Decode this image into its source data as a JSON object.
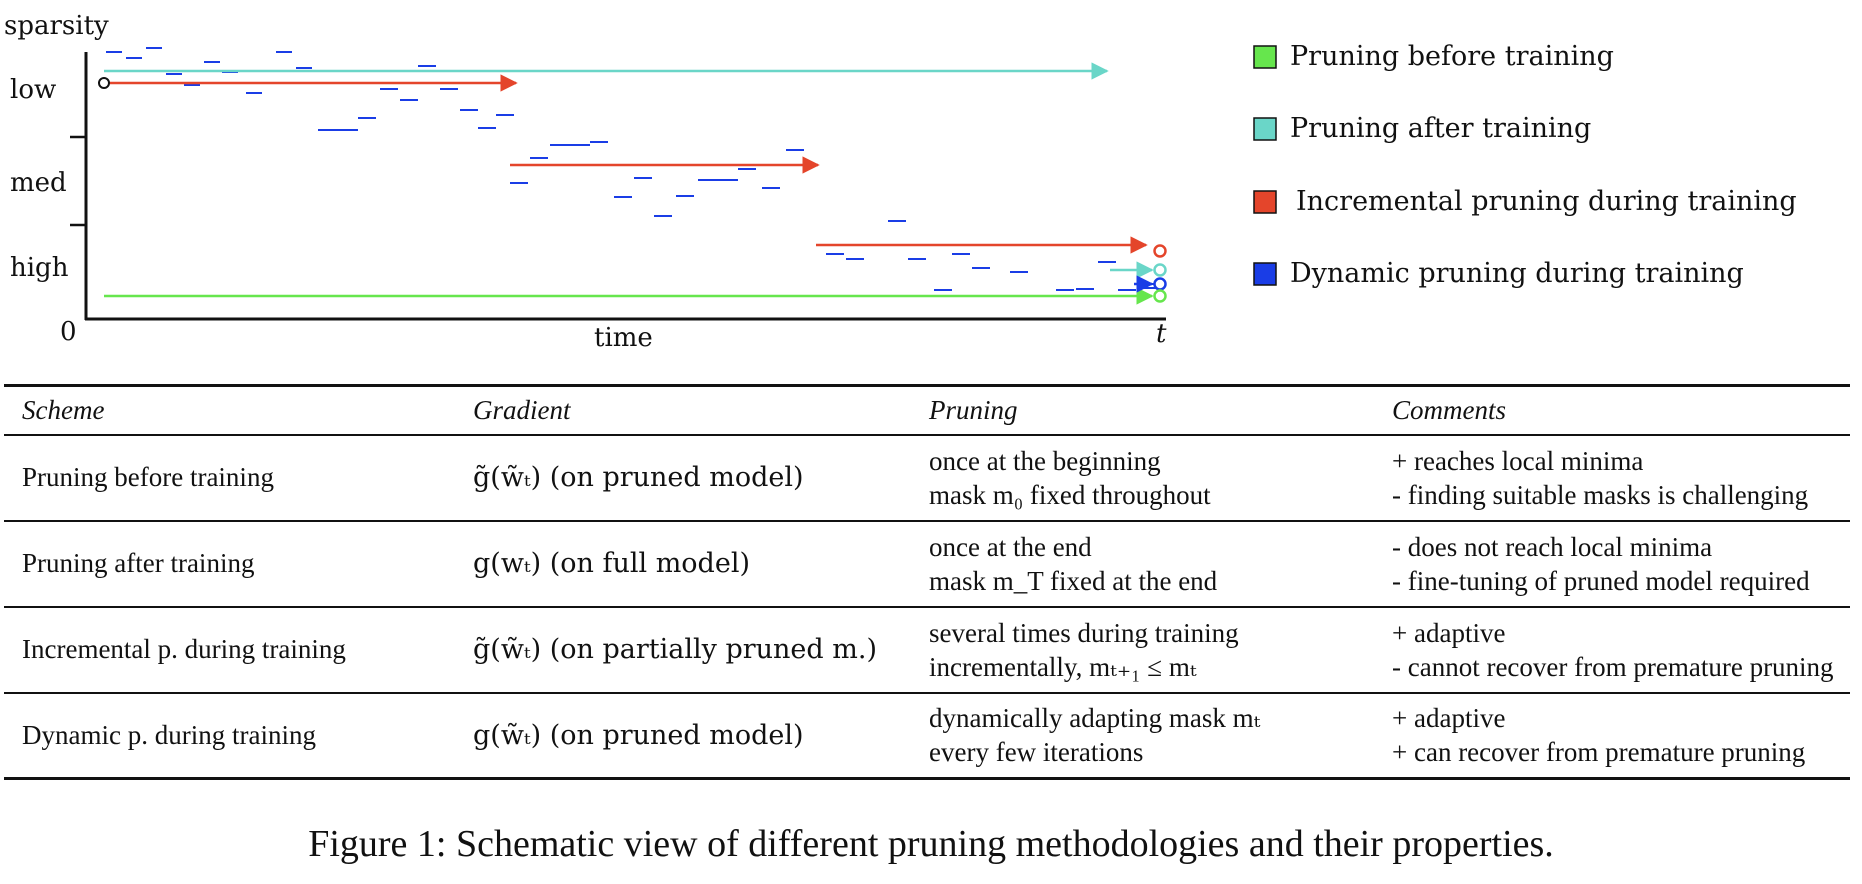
{
  "chart_data": {
    "type": "line",
    "ylabel": "sparsity",
    "xlabel": "time",
    "x_end_label": "t",
    "y_ticks": [
      "low",
      "med",
      "high"
    ],
    "y_origin_label": "0",
    "legend_position": "right",
    "series": [
      {
        "name": "Pruning before training",
        "color": "#66e64d",
        "level": "high",
        "start": 0.0,
        "end": 1.0
      },
      {
        "name": "Pruning after training",
        "color": "#6ad6c8",
        "level": "low",
        "start": 0.0,
        "end": 0.95
      },
      {
        "name": "Incremental pruning during training",
        "color": "#e4452b",
        "segments": [
          {
            "level": "low",
            "start": 0.0,
            "end": 0.39
          },
          {
            "level": "med",
            "start": 0.39,
            "end": 0.68
          },
          {
            "level": "high",
            "start": 0.68,
            "end": 1.0
          }
        ]
      },
      {
        "name": "Dynamic pruning during training",
        "color": "#1a3de6"
      }
    ]
  },
  "legend": {
    "items": [
      {
        "label": "Pruning before training",
        "color": "#66e64d"
      },
      {
        "label": "Pruning after training",
        "color": "#6ad6c8"
      },
      {
        "label": "Incremental pruning during training",
        "color": "#e4452b"
      },
      {
        "label": "Dynamic pruning during training",
        "color": "#1a3de6"
      }
    ]
  },
  "table": {
    "headers": [
      "Scheme",
      "Gradient",
      "Pruning",
      "Comments"
    ],
    "rows": [
      {
        "scheme": "Pruning before training",
        "gradient": "g̃(w̃ₜ) (on pruned model)",
        "pruning": [
          "once at the beginning",
          "mask m₀ fixed throughout"
        ],
        "comments": [
          "+ reaches local minima",
          "- finding suitable masks is challenging"
        ]
      },
      {
        "scheme": "Pruning after training",
        "gradient": "g(wₜ) (on full model)",
        "pruning": [
          "once at the end",
          "mask m_T fixed at the end"
        ],
        "comments": [
          "- does not reach local minima",
          "- fine-tuning of pruned model required"
        ]
      },
      {
        "scheme": "Incremental p. during training",
        "gradient": "g̃(w̃ₜ) (on partially pruned m.)",
        "pruning": [
          "several times during training",
          "incrementally, mₜ₊₁ ≤ mₜ"
        ],
        "comments": [
          "+ adaptive",
          "- cannot recover from premature pruning"
        ]
      },
      {
        "scheme": "Dynamic p. during training",
        "gradient": "g(w̃ₜ) (on pruned model)",
        "pruning": [
          "dynamically adapting mask mₜ",
          "every few iterations"
        ],
        "comments": [
          "+ adaptive",
          "+ can recover from premature pruning"
        ]
      }
    ]
  },
  "caption": "Figure 1: Schematic view of different pruning methodologies and their properties."
}
